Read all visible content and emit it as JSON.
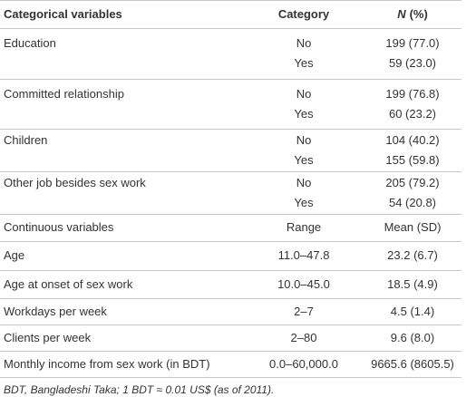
{
  "table": {
    "header": {
      "variable": "Categorical variables",
      "category": "Category",
      "n_symbol": "N",
      "n_rest": "(%)"
    },
    "categorical": [
      {
        "variable": "Education",
        "rows": [
          [
            "No",
            "199 (77.0)"
          ],
          [
            "Yes",
            "59 (23.0)"
          ]
        ]
      },
      {
        "variable": "Committed relationship",
        "rows": [
          [
            "No",
            "199 (76.8)"
          ],
          [
            "Yes",
            "60 (23.2)"
          ]
        ]
      },
      {
        "variable": "Children",
        "rows": [
          [
            "No",
            "104 (40.2)"
          ],
          [
            "Yes",
            "155 (59.8)"
          ]
        ]
      },
      {
        "variable": "Other job besides sex work",
        "rows": [
          [
            "No",
            "205 (79.2)"
          ],
          [
            "Yes",
            "54 (20.8)"
          ]
        ]
      }
    ],
    "continuous_header": [
      "Continuous variables",
      "Range",
      "Mean (SD)"
    ],
    "continuous": [
      [
        "Age",
        "11.0–47.8",
        "23.2 (6.7)"
      ],
      [
        "Age at onset of sex work",
        "10.0–45.0",
        "18.5 (4.9)"
      ],
      [
        "Workdays per week",
        "2–7",
        "4.5 (1.4)"
      ],
      [
        "Clients per week",
        "2–80",
        "9.6 (8.0)"
      ],
      [
        "Monthly income from sex work (in BDT)",
        "0.0–60,000.0",
        "9665.6 (8605.5)"
      ]
    ]
  },
  "footnote": "BDT, Bangladeshi Taka; 1 BDT ≈ 0.01 US$ (as of 2011)."
}
